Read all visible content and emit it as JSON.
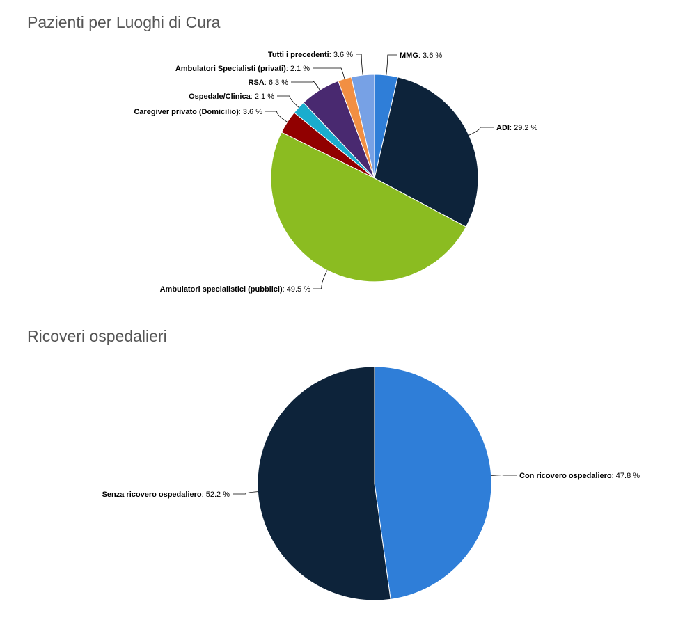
{
  "chart_data": [
    {
      "type": "pie",
      "title": "Pazienti per Luoghi di Cura",
      "slices": [
        {
          "name": "MMG",
          "value": 3.6,
          "label": "3.6 %",
          "color": "#2f7ed8"
        },
        {
          "name": "ADI",
          "value": 29.2,
          "label": "29.2 %",
          "color": "#0d233a"
        },
        {
          "name": "Ambulatori specialistici (pubblici)",
          "value": 49.5,
          "label": "49.5 %",
          "color": "#8bbc21"
        },
        {
          "name": "Caregiver privato (Domicilio)",
          "value": 3.6,
          "label": "3.6 %",
          "color": "#910000"
        },
        {
          "name": "Ospedale/Clinica",
          "value": 2.1,
          "label": "2.1 %",
          "color": "#1aadce"
        },
        {
          "name": "RSA",
          "value": 6.3,
          "label": "6.3 %",
          "color": "#492970"
        },
        {
          "name": "Ambulatori Specialisti (privati)",
          "value": 2.1,
          "label": "2.1 %",
          "color": "#f28f43"
        },
        {
          "name": "Tutti i precedenti",
          "value": 3.6,
          "label": "3.6 %",
          "color": "#77a1e5"
        }
      ]
    },
    {
      "type": "pie",
      "title": "Ricoveri ospedalieri",
      "slices": [
        {
          "name": "Con ricovero ospedaliero",
          "value": 47.8,
          "label": "47.8 %",
          "color": "#2f7ed8"
        },
        {
          "name": "Senza ricovero ospedaliero",
          "value": 52.2,
          "label": "52.2 %",
          "color": "#0d233a"
        }
      ]
    }
  ]
}
